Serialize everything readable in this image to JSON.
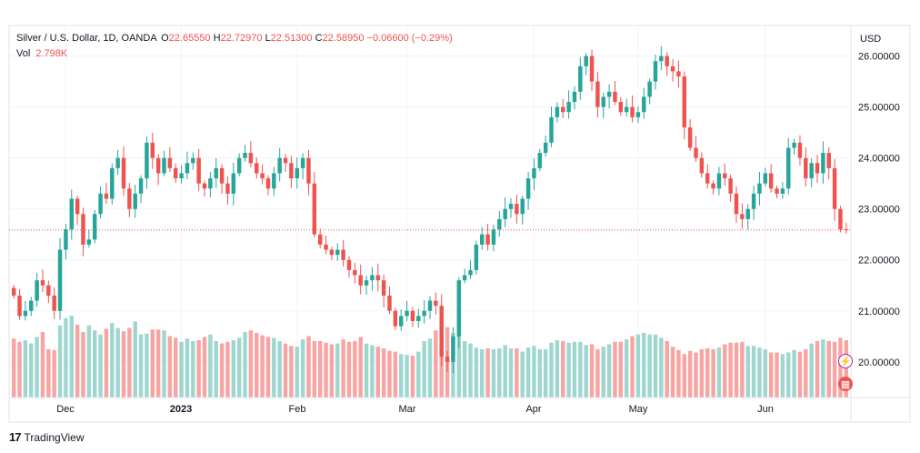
{
  "legend": {
    "symbol": "Silver / U.S. Dollar, 1D, OANDA",
    "open_label": "O",
    "open": "22.65550",
    "high_label": "H",
    "high": "22.72970",
    "low_label": "L",
    "low": "22.51300",
    "close_label": "C",
    "close": "22.58950",
    "change": "−0.06600 (−0.29%)",
    "vol_label": "Vol",
    "vol": "2.798K"
  },
  "currency": "USD",
  "colors": {
    "up": "#26a69a",
    "down": "#ef5350",
    "up_vol": "#9fd7d0",
    "down_vol": "#f6a5a3",
    "grid": "#f0f3fa"
  },
  "icons": {
    "alert": "flash-icon",
    "events": "calendar-icon"
  },
  "branding": "TradingView",
  "chart_data": {
    "type": "candlestick",
    "price_axis": {
      "ticks": [
        "26.00000",
        "25.00000",
        "24.00000",
        "23.00000",
        "22.00000",
        "21.00000",
        "20.00000"
      ],
      "ylim": [
        19.3,
        26.6
      ]
    },
    "time_axis": {
      "ticks": [
        "Dec",
        "2023",
        "Feb",
        "Mar",
        "Apr",
        "May",
        "Jun"
      ]
    },
    "last_price": 22.5895,
    "closes": [
      21.3,
      20.9,
      21.0,
      21.2,
      21.6,
      21.5,
      21.3,
      21.0,
      22.2,
      22.6,
      23.2,
      22.9,
      22.3,
      22.4,
      22.9,
      23.3,
      23.2,
      23.8,
      24.0,
      23.4,
      23.0,
      23.3,
      23.6,
      24.3,
      24.0,
      23.7,
      24.0,
      23.8,
      23.6,
      23.7,
      23.9,
      24.0,
      23.5,
      23.4,
      23.6,
      23.8,
      23.5,
      23.3,
      23.7,
      24.0,
      24.1,
      23.9,
      23.7,
      23.6,
      23.4,
      23.7,
      24.0,
      23.9,
      23.6,
      23.8,
      24.0,
      23.5,
      22.5,
      22.3,
      22.2,
      22.1,
      22.2,
      22.0,
      21.8,
      21.7,
      21.5,
      21.6,
      21.7,
      21.6,
      21.3,
      21.0,
      20.7,
      20.9,
      21.0,
      20.8,
      20.9,
      21.0,
      21.2,
      21.1,
      20.1,
      20.0,
      20.5,
      21.6,
      21.7,
      21.8,
      22.3,
      22.5,
      22.3,
      22.6,
      22.8,
      23.0,
      23.1,
      22.9,
      23.2,
      23.6,
      23.8,
      24.1,
      24.3,
      24.8,
      25.0,
      24.9,
      25.1,
      25.3,
      25.8,
      26.0,
      25.5,
      25.0,
      25.2,
      25.3,
      25.1,
      24.9,
      25.0,
      24.8,
      24.9,
      25.2,
      25.5,
      25.9,
      26.0,
      25.8,
      25.7,
      25.6,
      24.6,
      24.2,
      24.0,
      23.7,
      23.5,
      23.4,
      23.7,
      23.6,
      23.3,
      22.9,
      22.8,
      23.0,
      23.3,
      23.5,
      23.7,
      23.4,
      23.3,
      23.4,
      24.2,
      24.3,
      24.0,
      23.6,
      23.9,
      23.7,
      24.1,
      23.8,
      23.0,
      22.6,
      22.59
    ],
    "volumes_relative": [
      0.72,
      0.68,
      0.7,
      0.66,
      0.74,
      0.8,
      0.59,
      0.58,
      0.88,
      0.97,
      1.0,
      0.89,
      0.8,
      0.88,
      0.82,
      0.77,
      0.84,
      0.91,
      0.85,
      0.81,
      0.85,
      0.93,
      0.77,
      0.78,
      0.83,
      0.83,
      0.82,
      0.75,
      0.73,
      0.68,
      0.72,
      0.69,
      0.7,
      0.74,
      0.77,
      0.69,
      0.66,
      0.68,
      0.7,
      0.73,
      0.8,
      0.82,
      0.79,
      0.76,
      0.74,
      0.73,
      0.69,
      0.66,
      0.63,
      0.62,
      0.71,
      0.75,
      0.69,
      0.69,
      0.67,
      0.65,
      0.66,
      0.71,
      0.68,
      0.69,
      0.74,
      0.66,
      0.64,
      0.62,
      0.6,
      0.57,
      0.56,
      0.53,
      0.52,
      0.51,
      0.56,
      0.69,
      0.72,
      0.82,
      0.85,
      0.86,
      0.79,
      0.76,
      0.69,
      0.66,
      0.61,
      0.59,
      0.6,
      0.59,
      0.6,
      0.64,
      0.6,
      0.6,
      0.56,
      0.61,
      0.63,
      0.59,
      0.59,
      0.67,
      0.7,
      0.69,
      0.67,
      0.68,
      0.68,
      0.64,
      0.65,
      0.59,
      0.62,
      0.65,
      0.68,
      0.68,
      0.71,
      0.75,
      0.77,
      0.79,
      0.77,
      0.77,
      0.73,
      0.69,
      0.62,
      0.58,
      0.53,
      0.57,
      0.55,
      0.59,
      0.6,
      0.59,
      0.61,
      0.65,
      0.67,
      0.67,
      0.68,
      0.63,
      0.63,
      0.61,
      0.59,
      0.55,
      0.55,
      0.53,
      0.55,
      0.58,
      0.56,
      0.59,
      0.66,
      0.69,
      0.71,
      0.69,
      0.68,
      0.73,
      0.7
    ],
    "series": [
      {
        "name": "Vol",
        "type": "volume"
      }
    ]
  }
}
